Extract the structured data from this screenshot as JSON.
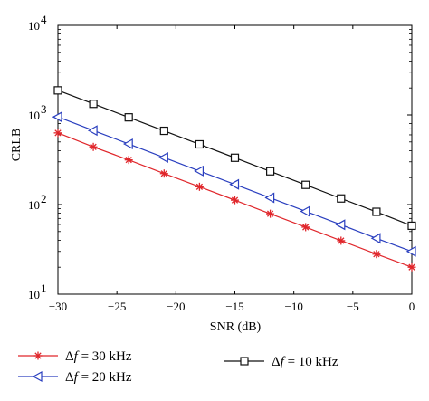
{
  "chart_data": {
    "type": "line",
    "xlabel": "SNR (dB)",
    "ylabel": "CRLB",
    "xlim": [
      -30,
      0
    ],
    "ylim": [
      10,
      10000
    ],
    "yscale": "log",
    "grid": false,
    "legend_position": "bottom",
    "x_ticks": [
      -30,
      -25,
      -20,
      -15,
      -10,
      -5,
      0
    ],
    "x_tick_labels": [
      "−30",
      "−25",
      "−20",
      "−15",
      "−10",
      "−5",
      "0"
    ],
    "y_ticks": [
      {
        "value": 10,
        "base": "10",
        "exp": "1"
      },
      {
        "value": 100,
        "base": "10",
        "exp": "2"
      },
      {
        "value": 1000,
        "base": "10",
        "exp": "3"
      },
      {
        "value": 10000,
        "base": "10",
        "exp": "4"
      }
    ],
    "x": [
      -30,
      -27,
      -24,
      -21,
      -18,
      -15,
      -12,
      -9,
      -6,
      -3,
      0
    ],
    "series": [
      {
        "name": "Δf = 30 kHz",
        "legend_prefix": "Δ",
        "legend_var": "f",
        "legend_rest": " = 30 kHz",
        "color": "#e0262b",
        "marker": "star",
        "values": [
          630,
          440,
          315,
          222,
          158,
          112,
          79,
          56,
          39.5,
          28,
          20
        ]
      },
      {
        "name": "Δf = 20 kHz",
        "legend_prefix": "Δ",
        "legend_var": "f",
        "legend_rest": " = 20 kHz",
        "color": "#2a3fbf",
        "marker": "triangle-left",
        "values": [
          950,
          670,
          475,
          335,
          237,
          168,
          119,
          84,
          59.5,
          42,
          30
        ]
      },
      {
        "name": "Δf = 10 kHz",
        "legend_prefix": "Δ",
        "legend_var": "f",
        "legend_rest": " = 10 kHz",
        "color": "#111111",
        "marker": "square",
        "values": [
          1880,
          1330,
          940,
          665,
          470,
          333,
          235,
          166,
          117,
          83,
          58
        ]
      }
    ]
  }
}
